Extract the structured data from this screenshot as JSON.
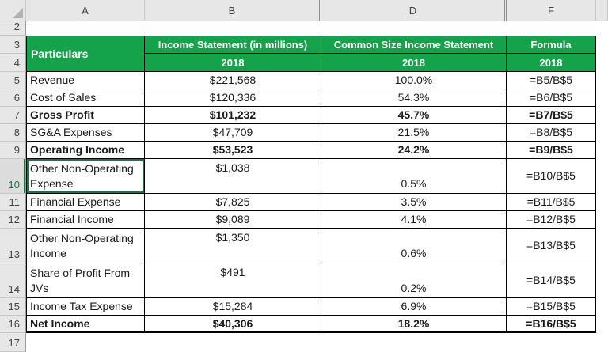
{
  "sheet": {
    "column_letters": [
      "A",
      "B",
      "D",
      "F"
    ],
    "row_numbers": [
      2,
      3,
      4,
      5,
      6,
      7,
      8,
      9,
      10,
      11,
      12,
      13,
      14,
      15,
      16,
      17
    ]
  },
  "table": {
    "header": {
      "particulars": "Particulars",
      "col1_title": "Income Statement (in millions)",
      "col1_year": "2018",
      "col2_title": "Common Size Income Statement",
      "col2_year": "2018",
      "col3_title": "Formula",
      "col3_year": "2018"
    },
    "rows": [
      {
        "row": 5,
        "label": "Revenue",
        "value": "$221,568",
        "pct": "100.0%",
        "formula": "=B5/B$5",
        "bold": false,
        "tall": false,
        "selected": false
      },
      {
        "row": 6,
        "label": "Cost of Sales",
        "value": "$120,336",
        "pct": "54.3%",
        "formula": "=B6/B$5",
        "bold": false,
        "tall": false,
        "selected": false
      },
      {
        "row": 7,
        "label": "Gross Profit",
        "value": "$101,232",
        "pct": "45.7%",
        "formula": "=B7/B$5",
        "bold": true,
        "tall": false,
        "selected": false
      },
      {
        "row": 8,
        "label": "SG&A Expenses",
        "value": "$47,709",
        "pct": "21.5%",
        "formula": "=B8/B$5",
        "bold": false,
        "tall": false,
        "selected": false
      },
      {
        "row": 9,
        "label": "Operating Income",
        "value": "$53,523",
        "pct": "24.2%",
        "formula": "=B9/B$5",
        "bold": true,
        "tall": false,
        "selected": false
      },
      {
        "row": 10,
        "label": "Other Non-Operating Expense",
        "value": "$1,038",
        "pct": "0.5%",
        "formula": "=B10/B$5",
        "bold": false,
        "tall": true,
        "selected": true
      },
      {
        "row": 11,
        "label": "Financial Expense",
        "value": "$7,825",
        "pct": "3.5%",
        "formula": "=B11/B$5",
        "bold": false,
        "tall": false,
        "selected": false
      },
      {
        "row": 12,
        "label": "Financial Income",
        "value": "$9,089",
        "pct": "4.1%",
        "formula": "=B12/B$5",
        "bold": false,
        "tall": false,
        "selected": false
      },
      {
        "row": 13,
        "label": "Other Non-Operating Income",
        "value": "$1,350",
        "pct": "0.6%",
        "formula": "=B13/B$5",
        "bold": false,
        "tall": true,
        "selected": false
      },
      {
        "row": 14,
        "label": "Share of Profit From JVs",
        "value": "$491",
        "pct": "0.2%",
        "formula": "=B14/B$5",
        "bold": false,
        "tall": true,
        "selected": false
      },
      {
        "row": 15,
        "label": "Income Tax Expense",
        "value": "$15,284",
        "pct": "6.9%",
        "formula": "=B15/B$5",
        "bold": false,
        "tall": false,
        "selected": false
      },
      {
        "row": 16,
        "label": "Net Income",
        "value": "$40,306",
        "pct": "18.2%",
        "formula": "=B16/B$5",
        "bold": true,
        "tall": false,
        "selected": false
      }
    ]
  },
  "selection": {
    "cell": "A10",
    "row_header": "10"
  },
  "colors": {
    "header_green": "#14A24B",
    "header_text": "#FFFFFF",
    "selection_green": "#217346",
    "panel_gray": "#E7E7E7",
    "grid_border": "#000000"
  }
}
